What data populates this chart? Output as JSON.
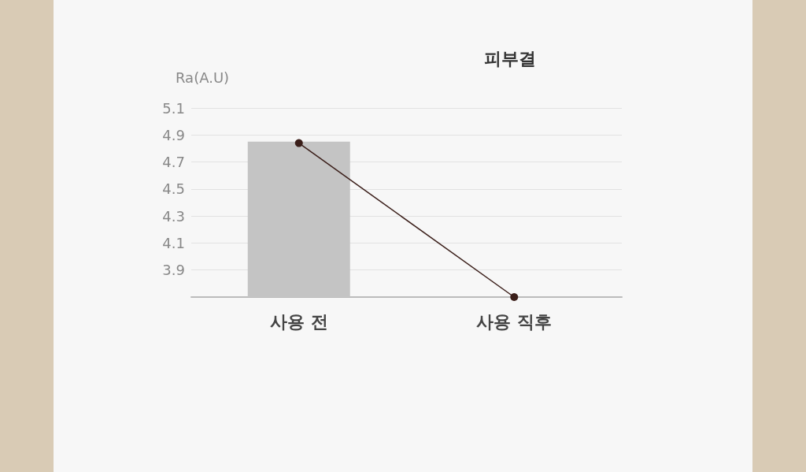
{
  "chart_data": {
    "type": "bar",
    "title": "피부결",
    "ylabel": "Ra(A.U)",
    "categories": [
      "사용 전",
      "사용 직후"
    ],
    "series": [
      {
        "color": "#c4c4c4",
        "values": [
          4.85,
          3.7
        ]
      },
      {
        "type": "line",
        "color": "#3b1f1a",
        "values": [
          4.84,
          3.7
        ]
      }
    ],
    "ylim": [
      3.7,
      5.1
    ],
    "yticks": [
      3.9,
      4.1,
      4.3,
      4.5,
      4.7,
      4.9,
      5.1
    ],
    "grid": "y",
    "marker": "circle",
    "line_style": "solid"
  }
}
